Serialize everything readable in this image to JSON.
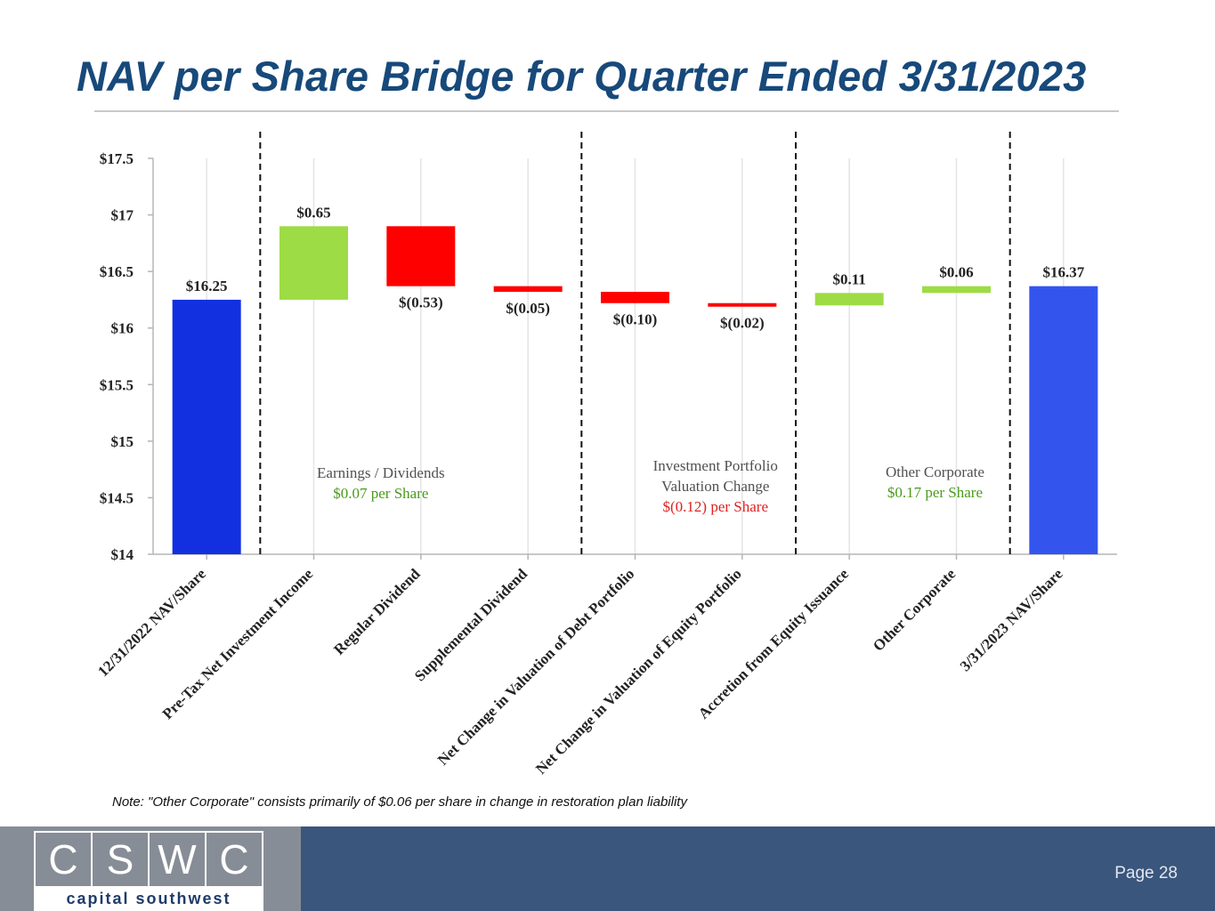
{
  "slide": {
    "title": "NAV per Share Bridge for Quarter Ended 3/31/2023",
    "note": "Note: \"Other Corporate\" consists primarily of $0.06 per share in change in restoration plan liability",
    "page_label": "Page 28"
  },
  "logo": {
    "letters": [
      "C",
      "S",
      "W",
      "C"
    ],
    "tagline": "capital southwest"
  },
  "colors": {
    "title": "#17497a",
    "total_start": "#1230e0",
    "total_end": "#3355ee",
    "increase": "#9ddc44",
    "decrease": "#ff0000",
    "positive_text": "#4a9a1a",
    "negative_text": "#e02020",
    "footer": "#3a567c"
  },
  "chart_data": {
    "type": "bar",
    "subtype": "waterfall",
    "title": "NAV per Share Bridge for Quarter Ended 3/31/2023",
    "ylim": [
      14,
      17.5
    ],
    "yticks": [
      {
        "value": 17.5,
        "label": "$17.5"
      },
      {
        "value": 17,
        "label": "$17"
      },
      {
        "value": 16.5,
        "label": "$16.5"
      },
      {
        "value": 16,
        "label": "$16"
      },
      {
        "value": 15.5,
        "label": "$15.5"
      },
      {
        "value": 15,
        "label": "$15"
      },
      {
        "value": 14.5,
        "label": "$14.5"
      },
      {
        "value": 14,
        "label": "$14"
      }
    ],
    "grid": "vertical",
    "bars": [
      {
        "category": "12/31/2022 NAV/Share",
        "kind": "total",
        "start": 14,
        "end": 16.25,
        "label": "$16.25"
      },
      {
        "category": "Pre-Tax Net Investment Income",
        "kind": "increase",
        "start": 16.25,
        "end": 16.9,
        "label": "$0.65"
      },
      {
        "category": "Regular Dividend",
        "kind": "decrease",
        "start": 16.9,
        "end": 16.37,
        "label": "$(0.53)"
      },
      {
        "category": "Supplemental Dividend",
        "kind": "decrease",
        "start": 16.37,
        "end": 16.32,
        "label": "$(0.05)"
      },
      {
        "category": "Net Change in Valuation of Debt Portfolio",
        "kind": "decrease",
        "start": 16.32,
        "end": 16.22,
        "label": "$(0.10)"
      },
      {
        "category": "Net Change in Valuation of Equity Portfolio",
        "kind": "decrease",
        "start": 16.22,
        "end": 16.2,
        "label": "$(0.02)"
      },
      {
        "category": "Accretion from Equity Issuance",
        "kind": "increase",
        "start": 16.2,
        "end": 16.31,
        "label": "$0.11"
      },
      {
        "category": "Other Corporate",
        "kind": "increase",
        "start": 16.31,
        "end": 16.37,
        "label": "$0.06"
      },
      {
        "category": "3/31/2023 NAV/Share",
        "kind": "total_end",
        "start": 14,
        "end": 16.37,
        "label": "$16.37"
      }
    ],
    "separators_after": [
      0,
      3,
      5,
      7
    ],
    "groups": [
      {
        "lines": [
          "Earnings / Dividends",
          "$0.07 per Share"
        ],
        "tones": [
          "neutral",
          "positive"
        ],
        "center_index": 2
      },
      {
        "lines": [
          "Investment Portfolio",
          "Valuation Change",
          "$(0.12) per Share"
        ],
        "tones": [
          "neutral",
          "neutral",
          "negative"
        ],
        "center_index": 4.75
      },
      {
        "lines": [
          "Other Corporate",
          "$0.17 per Share"
        ],
        "tones": [
          "neutral",
          "positive"
        ],
        "center_index": 6.8
      }
    ]
  }
}
